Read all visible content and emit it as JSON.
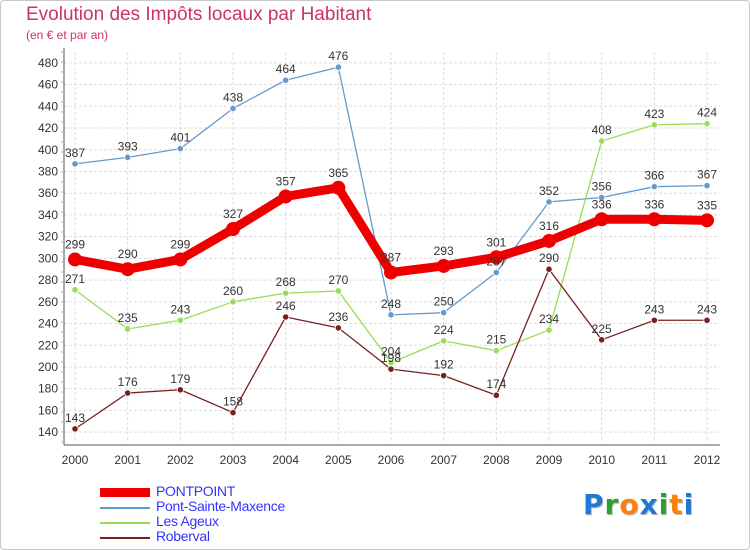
{
  "header": {
    "title": "Evolution des Impôts locaux par Habitant",
    "subtitle": "(en € et par an)"
  },
  "logo": {
    "letters": [
      "P",
      "r",
      "o",
      "x",
      "i",
      "t",
      "i"
    ],
    "colors": [
      "#1f77d8",
      "#2ca02c",
      "#ff7f0e",
      "#1f77d8",
      "#2ca02c",
      "#ff7f0e",
      "#1f77d8"
    ]
  },
  "chart_data": {
    "type": "line",
    "title": "Evolution des Impôts locaux par Habitant",
    "subtitle": "(en € et par an)",
    "xlabel": "",
    "ylabel": "",
    "ylim": [
      130,
      490
    ],
    "yticks": [
      140,
      160,
      180,
      200,
      220,
      240,
      260,
      280,
      300,
      320,
      340,
      360,
      380,
      400,
      420,
      440,
      460,
      480
    ],
    "grid": true,
    "legend_position": "bottom-left",
    "x": [
      "2000",
      "2001",
      "2002",
      "2003",
      "2004",
      "2005",
      "2006",
      "2007",
      "2008",
      "2009",
      "2010",
      "2011",
      "2012"
    ],
    "series": [
      {
        "name": "PONTPOINT",
        "color": "#ee0000",
        "bold": true,
        "values": [
          299,
          290,
          299,
          327,
          357,
          365,
          287,
          293,
          301,
          316,
          336,
          336,
          335
        ]
      },
      {
        "name": "Pont-Sainte-Maxence",
        "color": "#6699cc",
        "bold": false,
        "values": [
          387,
          393,
          401,
          438,
          464,
          476,
          248,
          250,
          287,
          352,
          356,
          366,
          367
        ]
      },
      {
        "name": "Les Ageux",
        "color": "#99dd55",
        "bold": false,
        "values": [
          271,
          235,
          243,
          260,
          268,
          270,
          204,
          224,
          215,
          234,
          408,
          423,
          424
        ]
      },
      {
        "name": "Roberval",
        "color": "#772222",
        "bold": false,
        "values": [
          143,
          176,
          179,
          158,
          246,
          236,
          198,
          192,
          174,
          290,
          225,
          243,
          243
        ]
      }
    ]
  }
}
